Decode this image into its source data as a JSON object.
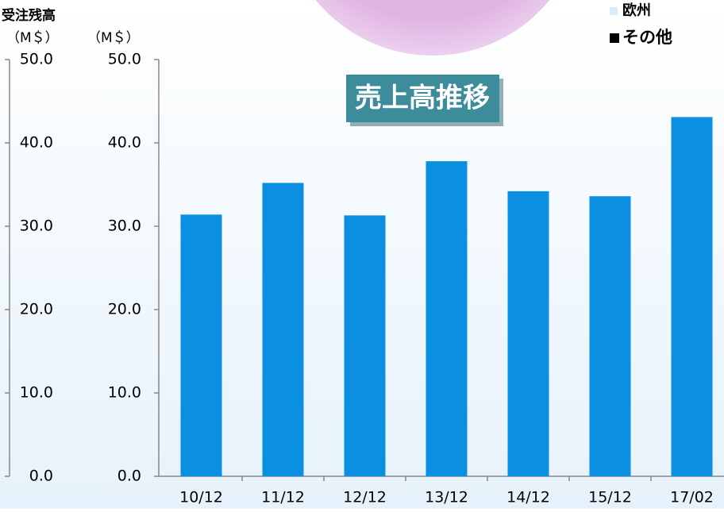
{
  "chart_data": {
    "type": "bar",
    "title": "売上高推移",
    "y2_label": "受注残高",
    "y2_unit_label": "（M＄）",
    "y_unit_label": "（M＄）",
    "categories": [
      "10/12",
      "11/12",
      "12/12",
      "13/12",
      "14/12",
      "15/12",
      "17/02"
    ],
    "series": [
      {
        "color": "#0b8fe0",
        "values": [
          31.4,
          35.2,
          31.3,
          37.8,
          34.2,
          33.6,
          43.1
        ]
      }
    ],
    "legend": [
      {
        "name": "欧州",
        "color": "#d6ecfa"
      },
      {
        "name": "その他",
        "color": "#000000"
      }
    ],
    "ylim": [
      0,
      50
    ],
    "yticks": [
      {
        "value": 0,
        "label": "0.0"
      },
      {
        "value": 10,
        "label": "10.0"
      },
      {
        "value": 20,
        "label": "20.0"
      },
      {
        "value": 30,
        "label": "30.0"
      },
      {
        "value": 40,
        "label": "40.0"
      },
      {
        "value": 50,
        "label": "50.0"
      }
    ],
    "y2lim": [
      0,
      50
    ],
    "y2ticks": [
      {
        "value": 0,
        "label": "0.0"
      },
      {
        "value": 10,
        "label": "10.0"
      },
      {
        "value": 20,
        "label": "20.0"
      },
      {
        "value": 30,
        "label": "30.0"
      },
      {
        "value": 40,
        "label": "40.0"
      },
      {
        "value": 50,
        "label": "50.0"
      }
    ]
  }
}
